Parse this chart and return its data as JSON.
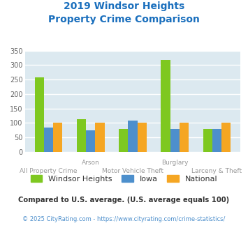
{
  "title_line1": "2019 Windsor Heights",
  "title_line2": "Property Crime Comparison",
  "title_color": "#1a6fbd",
  "categories": [
    "All Property Crime",
    "Arson",
    "Motor Vehicle Theft",
    "Burglary",
    "Larceny & Theft"
  ],
  "x_labels_row1": [
    "",
    "Arson",
    "",
    "Burglary",
    ""
  ],
  "x_labels_row2": [
    "All Property Crime",
    "",
    "Motor Vehicle Theft",
    "",
    "Larceny & Theft"
  ],
  "series": {
    "Windsor Heights": [
      257,
      113,
      80,
      318,
      80
    ],
    "Iowa": [
      83,
      75,
      108,
      80,
      80
    ],
    "National": [
      100,
      100,
      100,
      100,
      100
    ]
  },
  "colors": {
    "Windsor Heights": "#7ec820",
    "Iowa": "#4d8fcc",
    "National": "#f5a623"
  },
  "ylim": [
    0,
    350
  ],
  "yticks": [
    0,
    50,
    100,
    150,
    200,
    250,
    300,
    350
  ],
  "background_color": "#dce9f0",
  "grid_color": "#ffffff",
  "legend_labels": [
    "Windsor Heights",
    "Iowa",
    "National"
  ],
  "subtitle1": "Compared to U.S. average. (U.S. average equals 100)",
  "subtitle2": "© 2025 CityRating.com - https://www.cityrating.com/crime-statistics/",
  "subtitle1_color": "#333333",
  "subtitle2_color": "#4d8fcc",
  "label_color": "#999999",
  "bar_width": 0.22
}
